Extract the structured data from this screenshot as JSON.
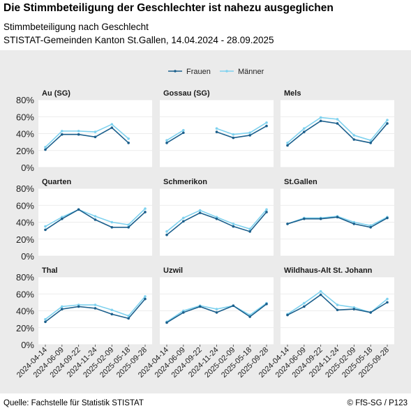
{
  "header": {
    "title": "Die Stimmbeteiligung der Geschlechter ist nahezu ausgeglichen",
    "subtitle_line1": "Stimmbeteiligung nach Geschlecht",
    "subtitle_line2": "STISTAT-Gemeinden Kanton St.Gallen, 14.04.2024 - 28.09.2025"
  },
  "footer": {
    "source": "Quelle: Fachstelle für Statistik STISTAT",
    "copyright": "© FfS-SG / P123"
  },
  "colors": {
    "Frauen": "#1b5f8c",
    "Männer": "#7fd2ef",
    "panel": "#ffffff",
    "background": "#ebebeb",
    "grid": "#e6e6e6"
  },
  "chart_data": {
    "type": "line",
    "facets": true,
    "x": [
      "2024-04-14",
      "2024-06-09",
      "2024-09-22",
      "2024-11-24",
      "2025-02-09",
      "2025-05-18",
      "2025-09-28"
    ],
    "ylim": [
      0,
      80
    ],
    "yticks": [
      "0%",
      "20%",
      "40%",
      "60%",
      "80%"
    ],
    "legend_position": "top",
    "legend": [
      "Frauen",
      "Männer"
    ],
    "panels": [
      {
        "name": "Au (SG)",
        "series": [
          {
            "name": "Frauen",
            "values": [
              21,
              39,
              39,
              36,
              47,
              29,
              null
            ]
          },
          {
            "name": "Männer",
            "values": [
              24,
              43,
              43,
              42,
              51,
              34,
              null
            ]
          }
        ]
      },
      {
        "name": "Gossau (SG)",
        "series": [
          {
            "name": "Frauen",
            "values": [
              29,
              41,
              null,
              42,
              35,
              38,
              49
            ]
          },
          {
            "name": "Männer",
            "values": [
              32,
              44,
              null,
              46,
              39,
              41,
              53
            ]
          }
        ]
      },
      {
        "name": "Mels",
        "series": [
          {
            "name": "Frauen",
            "values": [
              26,
              42,
              55,
              52,
              33,
              29,
              52
            ]
          },
          {
            "name": "Männer",
            "values": [
              29,
              46,
              59,
              57,
              38,
              32,
              56
            ]
          }
        ]
      },
      {
        "name": "Quarten",
        "series": [
          {
            "name": "Frauen",
            "values": [
              31,
              44,
              55,
              43,
              34,
              34,
              52
            ]
          },
          {
            "name": "Männer",
            "values": [
              35,
              46,
              55,
              47,
              40,
              37,
              56
            ]
          }
        ]
      },
      {
        "name": "Schmerikon",
        "series": [
          {
            "name": "Frauen",
            "values": [
              25,
              41,
              51,
              44,
              35,
              29,
              52
            ]
          },
          {
            "name": "Männer",
            "values": [
              29,
              45,
              54,
              46,
              38,
              32,
              55
            ]
          }
        ]
      },
      {
        "name": "St.Gallen",
        "series": [
          {
            "name": "Frauen",
            "values": [
              38,
              44,
              44,
              46,
              38,
              34,
              45
            ]
          },
          {
            "name": "Männer",
            "values": [
              38,
              45,
              45,
              47,
              40,
              36,
              46
            ]
          }
        ]
      },
      {
        "name": "Thal",
        "series": [
          {
            "name": "Frauen",
            "values": [
              27,
              42,
              45,
              43,
              36,
              31,
              54
            ]
          },
          {
            "name": "Männer",
            "values": [
              30,
              45,
              47,
              47,
              41,
              34,
              57
            ]
          }
        ]
      },
      {
        "name": "Uzwil",
        "series": [
          {
            "name": "Frauen",
            "values": [
              26,
              38,
              45,
              38,
              46,
              33,
              48
            ]
          },
          {
            "name": "Männer",
            "values": [
              27,
              40,
              46,
              42,
              46,
              35,
              49
            ]
          }
        ]
      },
      {
        "name": "Wildhaus-Alt St. Johann",
        "series": [
          {
            "name": "Frauen",
            "values": [
              35,
              45,
              59,
              41,
              42,
              38,
              50
            ]
          },
          {
            "name": "Männer",
            "values": [
              36,
              49,
              63,
              47,
              44,
              38,
              54
            ]
          }
        ]
      }
    ]
  }
}
